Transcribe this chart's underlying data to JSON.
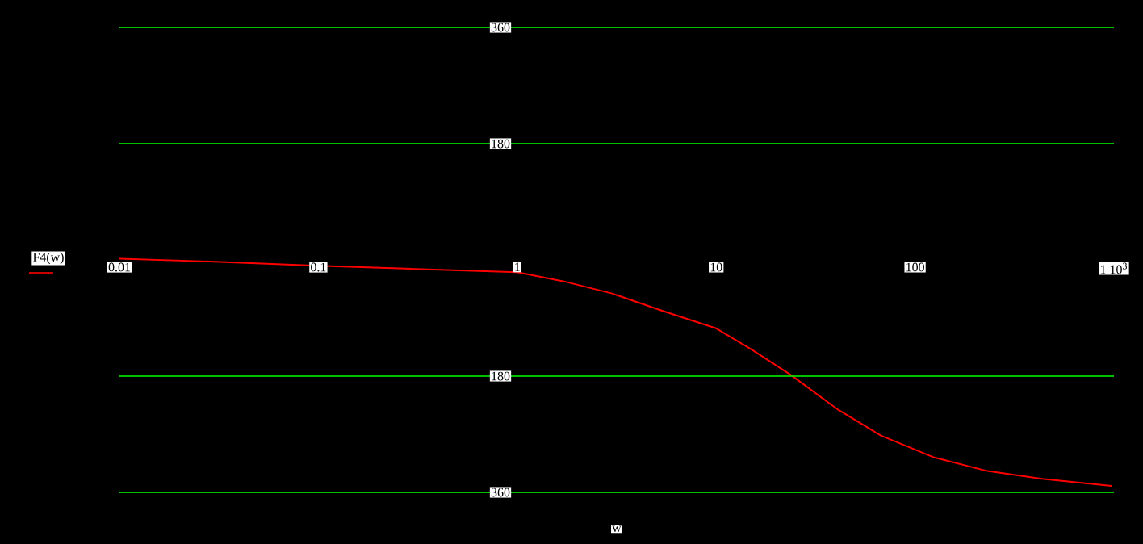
{
  "chart_data": {
    "type": "line",
    "log": "x",
    "xlabel": "w",
    "legend": "left",
    "grid": "y",
    "x": [
      0.01,
      0.032,
      0.1,
      0.306,
      1,
      1.7,
      3.0,
      5.5,
      10,
      15.1,
      23.7,
      40.6,
      67.3,
      125,
      231,
      435,
      973
    ],
    "series": [
      {
        "name": "F4(w)",
        "color": "#ff0000",
        "values": [
          2,
          -3,
          -9,
          -14,
          -19,
          -33,
          -52,
          -80,
          -106,
          -139,
          -178,
          -231,
          -272,
          -306,
          -327,
          -339,
          -350
        ]
      }
    ],
    "xlim": [
      0.01,
      1000
    ],
    "xticks": [
      0.01,
      0.1,
      1,
      10,
      100,
      {
        "value": 1000,
        "label": "1 10$^{3}$"
      }
    ],
    "ylim": [
      -360,
      360
    ],
    "yticks": [
      360,
      180,
      {
        "value": -180,
        "label": "180"
      },
      {
        "value": -360,
        "label": "360"
      }
    ]
  }
}
